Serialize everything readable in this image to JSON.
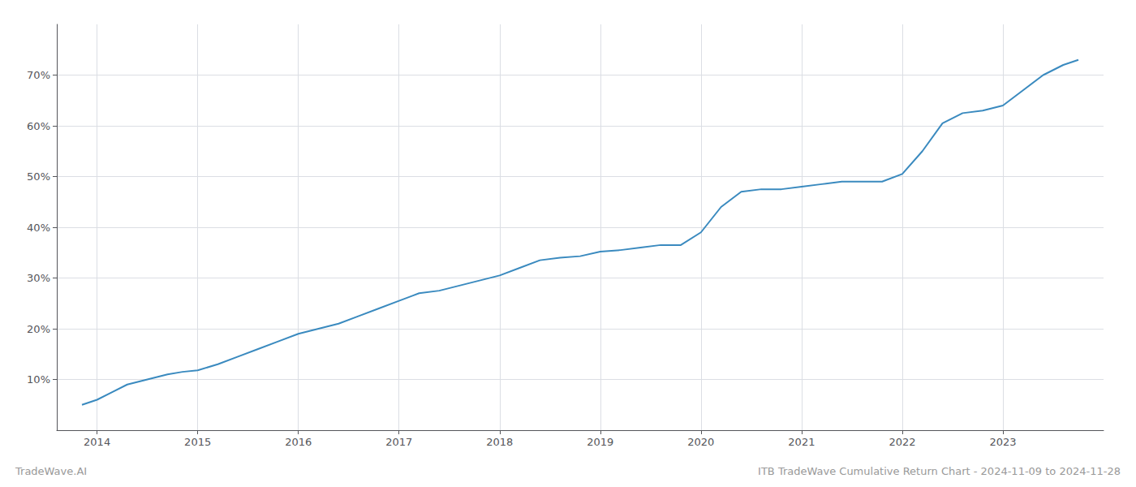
{
  "chart_data": {
    "type": "line",
    "title": "ITB TradeWave Cumulative Return Chart - 2024-11-09 to 2024-11-28",
    "annotations": [
      "TradeWave.AI"
    ],
    "color": "#3a8abf",
    "x": [
      2013.85,
      2014.0,
      2014.15,
      2014.3,
      2014.5,
      2014.7,
      2014.85,
      2015.0,
      2015.2,
      2015.4,
      2015.6,
      2015.8,
      2016.0,
      2016.2,
      2016.4,
      2016.6,
      2016.8,
      2017.0,
      2017.2,
      2017.4,
      2017.6,
      2017.8,
      2018.0,
      2018.2,
      2018.4,
      2018.6,
      2018.8,
      2019.0,
      2019.2,
      2019.4,
      2019.6,
      2019.8,
      2020.0,
      2020.2,
      2020.4,
      2020.6,
      2020.8,
      2021.0,
      2021.2,
      2021.4,
      2021.6,
      2021.8,
      2022.0,
      2022.2,
      2022.4,
      2022.6,
      2022.8,
      2023.0,
      2023.2,
      2023.4,
      2023.6,
      2023.75
    ],
    "values": [
      5.0,
      6.0,
      7.5,
      9.0,
      10.0,
      11.0,
      11.5,
      11.8,
      13.0,
      14.5,
      16.0,
      17.5,
      19.0,
      20.0,
      21.0,
      22.5,
      24.0,
      25.5,
      27.0,
      27.5,
      28.5,
      29.5,
      30.5,
      32.0,
      33.5,
      34.0,
      34.3,
      35.2,
      35.5,
      36.0,
      36.5,
      36.5,
      39.0,
      44.0,
      47.0,
      47.5,
      47.5,
      48.0,
      48.5,
      49.0,
      49.0,
      49.0,
      50.5,
      55.0,
      60.5,
      62.5,
      63.0,
      64.0,
      67.0,
      70.0,
      72.0,
      73.0
    ],
    "xlim": [
      2013.6,
      2024.0
    ],
    "xticks": [
      2014,
      2015,
      2016,
      2017,
      2018,
      2019,
      2020,
      2021,
      2022,
      2023
    ],
    "ylim": [
      0,
      80
    ],
    "yticks": [
      {
        "value": 10,
        "label": "10%"
      },
      {
        "value": 20,
        "label": "20%"
      },
      {
        "value": 30,
        "label": "30%"
      },
      {
        "value": 40,
        "label": "40%"
      },
      {
        "value": 50,
        "label": "50%"
      },
      {
        "value": 60,
        "label": "60%"
      },
      {
        "value": 70,
        "label": "70%"
      }
    ],
    "grid": true
  }
}
